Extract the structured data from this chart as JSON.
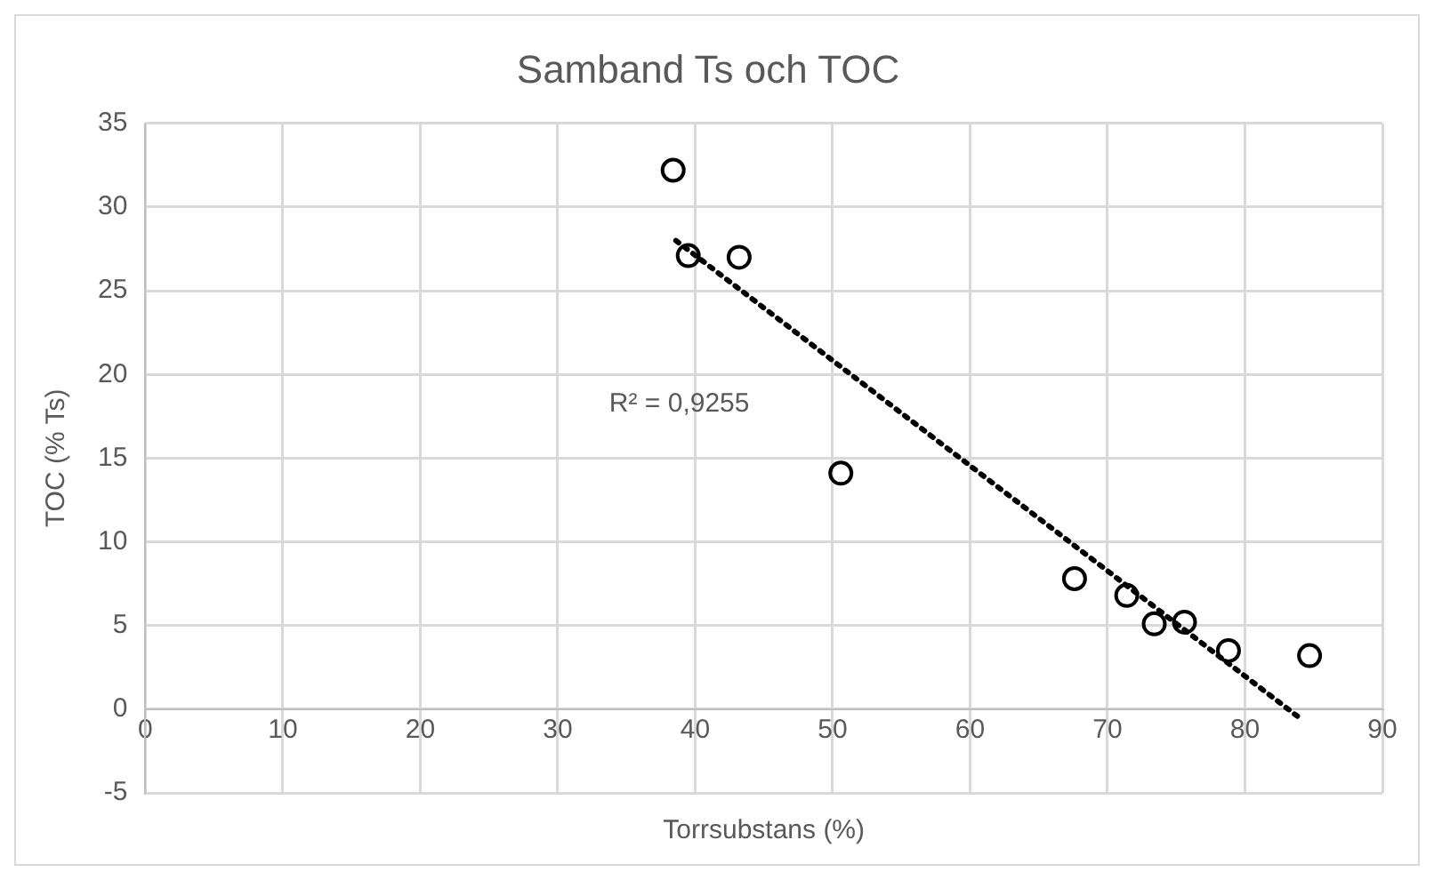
{
  "chart_data": {
    "type": "scatter",
    "title": "Samband Ts och TOC",
    "xlabel": "Torrsubstans (%)",
    "ylabel": "TOC (% Ts)",
    "xlim": [
      0,
      90
    ],
    "xticks": [
      0,
      10,
      20,
      30,
      40,
      50,
      60,
      70,
      80,
      90
    ],
    "ylim": [
      -5,
      35
    ],
    "yticks": [
      -5,
      0,
      5,
      10,
      15,
      20,
      25,
      30,
      35
    ],
    "grid": true,
    "legend": false,
    "marker": "circle",
    "series": [
      {
        "type": "scatter",
        "color": "#000000",
        "x": [
          38.4,
          39.5,
          43.2,
          50.6,
          67.6,
          71.4,
          73.4,
          75.6,
          78.8,
          84.7
        ],
        "values": [
          32.2,
          27.1,
          27.0,
          14.1,
          7.8,
          6.8,
          5.1,
          5.2,
          3.5,
          3.2
        ]
      },
      {
        "type": "line",
        "color": "#000000",
        "marker": "none",
        "line_style": "dotted",
        "x": [
          38.6,
          84.1
        ],
        "values": [
          28,
          -0.6
        ]
      }
    ],
    "annotations": [
      "R² = 0,9255"
    ]
  }
}
